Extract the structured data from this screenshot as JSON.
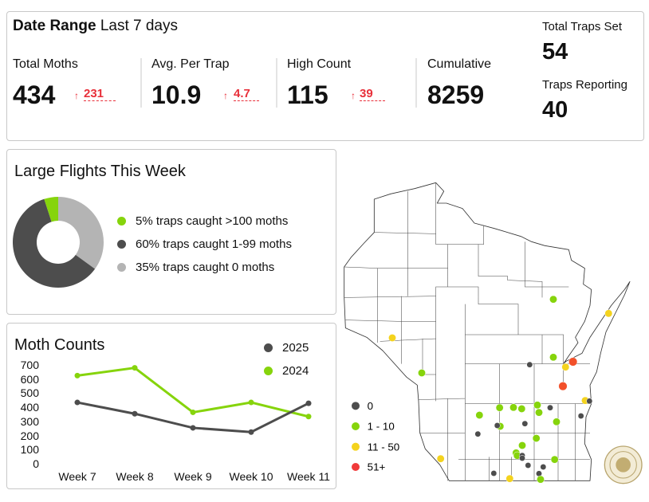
{
  "header": {
    "date_range_label": "Date Range",
    "date_range_value": "Last 7 days"
  },
  "metrics": [
    {
      "label": "Total Moths",
      "value": "434",
      "delta": "231",
      "arrow": "↑"
    },
    {
      "label": "Avg. Per Trap",
      "value": "10.9",
      "delta": "4.7",
      "arrow": "↑"
    },
    {
      "label": "High Count",
      "value": "115",
      "delta": "39",
      "arrow": "↑"
    },
    {
      "label": "Cumulative",
      "value": "8259"
    }
  ],
  "traps": {
    "set_label": "Total Traps Set",
    "set_value": "54",
    "reporting_label": "Traps Reporting",
    "reporting_value": "40"
  },
  "colors": {
    "green": "#86d40c",
    "dark": "#4d4d4d",
    "grey": "#b4b4b4",
    "yellow": "#f4d31e",
    "red": "#f2502a",
    "up": "#e8303a"
  },
  "chart_data": [
    {
      "type": "pie",
      "title": "Large Flights This Week",
      "donut": true,
      "slices": [
        {
          "label": "5% traps caught >100 moths",
          "value": 5,
          "color": "#86d40c"
        },
        {
          "label": "60% traps caught 1-99 moths",
          "value": 60,
          "color": "#4d4d4d"
        },
        {
          "label": "35% traps caught 0 moths",
          "value": 35,
          "color": "#b4b4b4"
        }
      ]
    },
    {
      "type": "line",
      "title": "Moth Counts",
      "categories": [
        "Week 7",
        "Week 8",
        "Week 9",
        "Week 10",
        "Week 11"
      ],
      "yticks": [
        "700",
        "600",
        "500",
        "400",
        "300",
        "200",
        "100",
        "0"
      ],
      "ylim": [
        0,
        700
      ],
      "legend": "top-right",
      "series": [
        {
          "name": "2025",
          "color": "#4d4d4d",
          "values": [
            440,
            360,
            260,
            230,
            434
          ]
        },
        {
          "name": "2024",
          "color": "#86d40c",
          "values": [
            630,
            685,
            370,
            440,
            340
          ]
        }
      ]
    }
  ],
  "map": {
    "legend": [
      {
        "label": "0",
        "color": "#4d4d4d"
      },
      {
        "label": "1 - 10",
        "color": "#86d40c"
      },
      {
        "label": "11 - 50",
        "color": "#f4d31e"
      },
      {
        "label": "51+",
        "color": "#f03a3a"
      }
    ]
  }
}
